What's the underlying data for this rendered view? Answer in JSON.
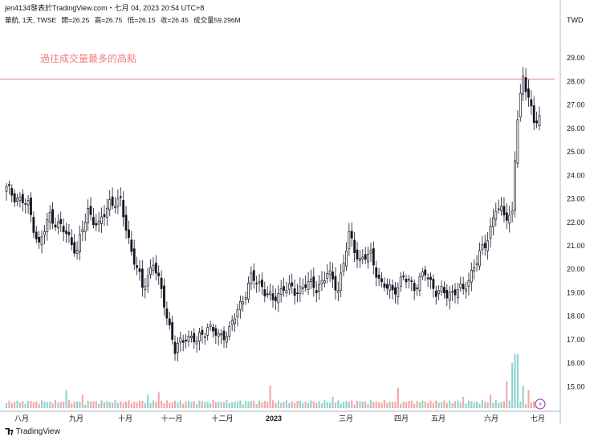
{
  "header": {
    "publish": "jen4134發表於TradingView.com・七月 04, 2023 20:54 UTC+8",
    "symbol": "華航, 1天, TWSE",
    "open": "開=26.25",
    "high": "高=26.75",
    "low": "低=26.15",
    "close": "收=26.45",
    "volume": "成交量59.296M"
  },
  "footer": {
    "brand": "TradingView"
  },
  "colors": {
    "up": "#ffffff",
    "up_border": "#131722",
    "down": "#131722",
    "vol_up": "#8fd3cc",
    "vol_down": "#f3a6a6",
    "resistance": "#f08080",
    "grid": "#e0e3eb"
  },
  "chart_data": {
    "type": "candlestick",
    "currency": "TWD",
    "ylim": [
      14.5,
      29.5
    ],
    "yticks": [
      "29.00",
      "28.00",
      "27.00",
      "26.00",
      "25.00",
      "24.00",
      "23.00",
      "22.00",
      "21.00",
      "20.00",
      "19.00",
      "18.00",
      "17.00",
      "16.00",
      "15.00"
    ],
    "xticks": [
      "八月",
      "九月",
      "十月",
      "十一月",
      "十二月",
      "2023",
      "三月",
      "四月",
      "五月",
      "六月",
      "七月"
    ],
    "annotation": {
      "text": "過往成交量最多的高點",
      "price": 28.1
    },
    "anchors": [
      [
        0,
        23.4
      ],
      [
        8,
        22.7
      ],
      [
        12,
        21.0
      ],
      [
        16,
        22.3
      ],
      [
        22,
        21.5
      ],
      [
        26,
        20.8
      ],
      [
        30,
        22.5
      ],
      [
        34,
        21.8
      ],
      [
        38,
        22.9
      ],
      [
        42,
        22.8
      ],
      [
        46,
        20.8
      ],
      [
        50,
        19.2
      ],
      [
        54,
        20.3
      ],
      [
        58,
        18.6
      ],
      [
        62,
        16.5
      ],
      [
        66,
        17.2
      ],
      [
        70,
        16.9
      ],
      [
        74,
        17.6
      ],
      [
        78,
        17.1
      ],
      [
        82,
        17.4
      ],
      [
        86,
        18.5
      ],
      [
        90,
        19.6
      ],
      [
        94,
        19.3
      ],
      [
        98,
        18.6
      ],
      [
        102,
        19.3
      ],
      [
        106,
        19.0
      ],
      [
        110,
        19.4
      ],
      [
        114,
        19.2
      ],
      [
        118,
        19.8
      ],
      [
        122,
        19.2
      ],
      [
        126,
        21.4
      ],
      [
        130,
        20.4
      ],
      [
        134,
        20.6
      ],
      [
        138,
        19.3
      ],
      [
        142,
        19.1
      ],
      [
        146,
        19.6
      ],
      [
        150,
        19.3
      ],
      [
        154,
        19.8
      ],
      [
        158,
        19.1
      ],
      [
        162,
        18.9
      ],
      [
        166,
        19.2
      ],
      [
        168,
        19.0
      ],
      [
        172,
        20.2
      ],
      [
        176,
        21.0
      ],
      [
        180,
        22.6
      ],
      [
        183,
        22.3
      ],
      [
        186,
        22.4
      ],
      [
        187,
        24.7
      ],
      [
        188,
        26.4
      ],
      [
        190,
        28.1
      ],
      [
        192,
        27.5
      ],
      [
        194,
        26.2
      ],
      [
        196,
        26.4
      ]
    ],
    "volume_spikes": [
      [
        22,
        8
      ],
      [
        28,
        6
      ],
      [
        52,
        6
      ],
      [
        56,
        7
      ],
      [
        97,
        10
      ],
      [
        120,
        5
      ],
      [
        144,
        9
      ],
      [
        168,
        5
      ],
      [
        178,
        6
      ],
      [
        184,
        12
      ],
      [
        186,
        20
      ],
      [
        187,
        24
      ],
      [
        188,
        24
      ],
      [
        190,
        10
      ],
      [
        192,
        8
      ]
    ],
    "volume_color_flip": [
      22,
      28,
      97,
      120,
      144,
      178
    ],
    "last_price": 26.45
  }
}
